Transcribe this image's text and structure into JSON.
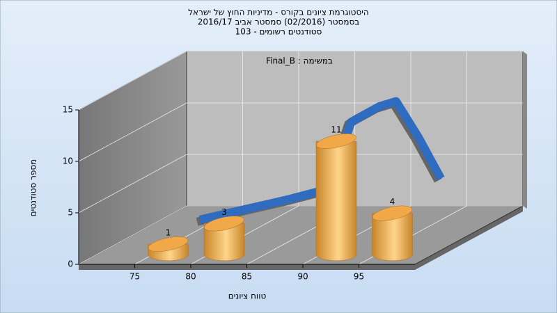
{
  "chart_data": {
    "type": "histogram",
    "title": [
      "היסטוגרמת ציונים בקורס - מדיניות החוץ של ישראל",
      "בסמסטר  (02/2016)  סמסטר אביב 2016/17",
      "סטודנטים רשומים - 103"
    ],
    "annotation": "Final_B : במשימה",
    "x_label": "טווח ציונים",
    "y_label": "מספר סטודנטים",
    "bins": [
      75,
      80,
      85,
      90,
      95,
      100
    ],
    "values": [
      1,
      3,
      null,
      11,
      4
    ],
    "color": "#f0a848",
    "curve": {
      "color": "#2f6bbf",
      "x": [
        76,
        80,
        84,
        87.5,
        89.5,
        92,
        93.5,
        95.5,
        97.5
      ],
      "values": [
        1.5,
        2.5,
        3.5,
        4.5,
        11,
        12.5,
        13,
        9.5,
        5.5
      ]
    },
    "xlim": [
      70,
      100
    ],
    "xticks": [
      75,
      80,
      85,
      90,
      95
    ],
    "ylim": [
      0,
      15
    ],
    "yticks": [
      0,
      5,
      10,
      15
    ],
    "grid": true
  }
}
